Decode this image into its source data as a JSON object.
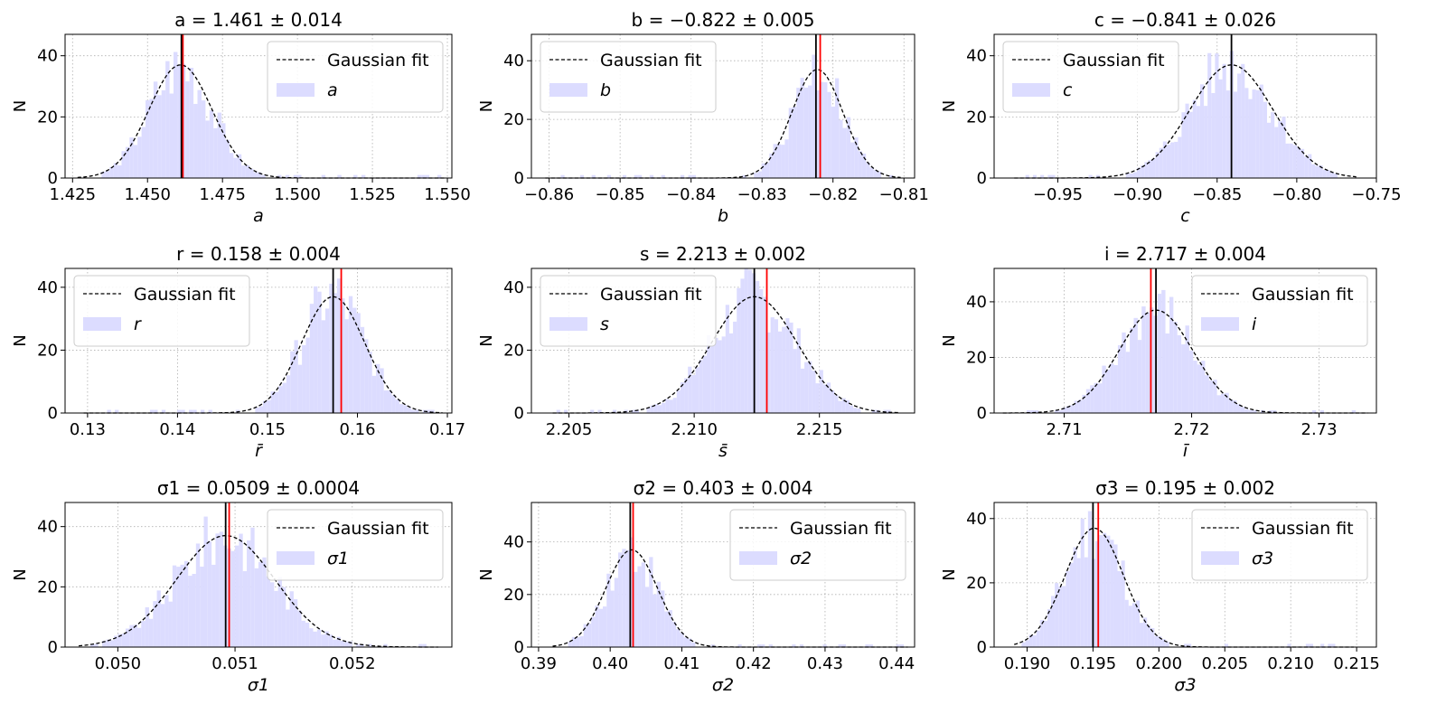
{
  "chart_data": [
    {
      "type": "histogram",
      "title": "a = 1.461 ± 0.014",
      "xlabel": "a",
      "ylabel": "N",
      "legend_fit": "Gaussian fit",
      "legend_symbol": "a",
      "legend_position": "top-right",
      "xlim": [
        1.4225,
        1.5515
      ],
      "ylim": [
        0,
        47
      ],
      "xticks": [
        1.425,
        1.45,
        1.475,
        1.5,
        1.525,
        1.55
      ],
      "xtick_labels": [
        "1.425",
        "1.450",
        "1.475",
        "1.500",
        "1.525",
        "1.550"
      ],
      "yticks": [
        0,
        20,
        40
      ],
      "mean": 1.461,
      "std": 0.0105,
      "peak": 37,
      "black_line": 1.4613,
      "red_line": 1.4618,
      "bins_range": [
        1.428,
        1.548
      ],
      "grid": true
    },
    {
      "type": "histogram",
      "title": "b = −0.822 ± 0.005",
      "xlabel": "b",
      "ylabel": "N",
      "legend_fit": "Gaussian fit",
      "legend_symbol": "b",
      "legend_position": "top-left",
      "xlim": [
        -0.8625,
        -0.8085
      ],
      "ylim": [
        0,
        49
      ],
      "xticks": [
        -0.86,
        -0.85,
        -0.84,
        -0.83,
        -0.82,
        -0.81
      ],
      "xtick_labels": [
        "−0.86",
        "−0.85",
        "−0.84",
        "−0.83",
        "−0.82",
        "−0.81"
      ],
      "yticks": [
        0,
        20,
        40
      ],
      "mean": -0.8222,
      "std": 0.0036,
      "peak": 37,
      "black_line": -0.8224,
      "red_line": -0.8218,
      "bins_range": [
        -0.86,
        -0.811
      ],
      "grid": true
    },
    {
      "type": "histogram",
      "title": "c = −0.841 ± 0.026",
      "xlabel": "c",
      "ylabel": "N",
      "legend_fit": "Gaussian fit",
      "legend_symbol": "c",
      "legend_position": "top-left",
      "xlim": [
        -0.99,
        -0.75
      ],
      "ylim": [
        0,
        47
      ],
      "xticks": [
        -0.95,
        -0.9,
        -0.85,
        -0.8,
        -0.75
      ],
      "xtick_labels": [
        "−0.95",
        "−0.90",
        "−0.85",
        "−0.80",
        "−0.75"
      ],
      "yticks": [
        0,
        20,
        40
      ],
      "mean": -0.841,
      "std": 0.026,
      "peak": 37,
      "black_line": -0.841,
      "red_line": null,
      "bins_range": [
        -0.975,
        -0.765
      ],
      "grid": true
    },
    {
      "type": "histogram",
      "title": "r = 0.158 ± 0.004",
      "xlabel": "r̄",
      "ylabel": "N",
      "legend_fit": "Gaussian fit",
      "legend_symbol": "r",
      "legend_position": "top-left",
      "xlim": [
        0.1275,
        0.1705
      ],
      "ylim": [
        0,
        46
      ],
      "xticks": [
        0.13,
        0.14,
        0.15,
        0.16,
        0.17
      ],
      "xtick_labels": [
        "0.13",
        "0.14",
        "0.15",
        "0.16",
        "0.17"
      ],
      "yticks": [
        0,
        20,
        40
      ],
      "mean": 0.1573,
      "std": 0.0035,
      "peak": 37,
      "black_line": 0.1573,
      "red_line": 0.1582,
      "bins_range": [
        0.13,
        0.169
      ],
      "grid": true
    },
    {
      "type": "histogram",
      "title": "s = 2.213 ± 0.002",
      "xlabel": "s̄",
      "ylabel": "N",
      "legend_fit": "Gaussian fit",
      "legend_symbol": "s",
      "legend_position": "top-left",
      "xlim": [
        2.2035,
        2.2188
      ],
      "ylim": [
        0,
        46
      ],
      "xticks": [
        2.205,
        2.21,
        2.215
      ],
      "xtick_labels": [
        "2.205",
        "2.210",
        "2.215"
      ],
      "yticks": [
        0,
        20,
        40
      ],
      "mean": 2.2124,
      "std": 0.0017,
      "peak": 37,
      "black_line": 2.2124,
      "red_line": 2.2129,
      "bins_range": [
        2.2045,
        2.218
      ],
      "grid": true
    },
    {
      "type": "histogram",
      "title": "i = 2.717 ± 0.004",
      "xlabel": "ī",
      "ylabel": "N",
      "legend_fit": "Gaussian fit",
      "legend_symbol": "i",
      "legend_position": "top-right",
      "xlim": [
        2.7045,
        2.7345
      ],
      "ylim": [
        0,
        52
      ],
      "xticks": [
        2.71,
        2.72,
        2.73
      ],
      "xtick_labels": [
        "2.71",
        "2.72",
        "2.73"
      ],
      "yticks": [
        0,
        20,
        40
      ],
      "mean": 2.7172,
      "std": 0.0029,
      "peak": 37,
      "black_line": 2.7172,
      "red_line": 2.7168,
      "bins_range": [
        2.7055,
        2.7335
      ],
      "grid": true
    },
    {
      "type": "histogram",
      "title": "σ1 = 0.0509 ± 0.0004",
      "xlabel": "σ1",
      "ylabel": "N",
      "legend_fit": "Gaussian fit",
      "legend_symbol": "σ1",
      "legend_position": "top-right",
      "xlim": [
        0.04955,
        0.05285
      ],
      "ylim": [
        0,
        48
      ],
      "xticks": [
        0.05,
        0.051,
        0.052
      ],
      "xtick_labels": [
        "0.050",
        "0.051",
        "0.052"
      ],
      "yticks": [
        0,
        20,
        40
      ],
      "mean": 0.05092,
      "std": 0.00042,
      "peak": 37,
      "black_line": 0.05092,
      "red_line": 0.05095,
      "bins_range": [
        0.0497,
        0.0527
      ],
      "grid": true
    },
    {
      "type": "histogram",
      "title": "σ2 = 0.403 ± 0.004",
      "xlabel": "σ2",
      "ylabel": "N",
      "legend_fit": "Gaussian fit",
      "legend_symbol": "σ2",
      "legend_position": "top-right",
      "xlim": [
        0.389,
        0.4425
      ],
      "ylim": [
        0,
        55
      ],
      "xticks": [
        0.39,
        0.4,
        0.41,
        0.42,
        0.43,
        0.44
      ],
      "xtick_labels": [
        "0.39",
        "0.40",
        "0.41",
        "0.42",
        "0.43",
        "0.44"
      ],
      "yticks": [
        0,
        20,
        40
      ],
      "mean": 0.403,
      "std": 0.0036,
      "peak": 37,
      "black_line": 0.4028,
      "red_line": 0.4032,
      "bins_range": [
        0.3925,
        0.441
      ],
      "grid": true
    },
    {
      "type": "histogram",
      "title": "σ3 = 0.195 ± 0.002",
      "xlabel": "σ3",
      "ylabel": "N",
      "legend_fit": "Gaussian fit",
      "legend_symbol": "σ3",
      "legend_position": "top-right",
      "xlim": [
        0.1875,
        0.2165
      ],
      "ylim": [
        0,
        45
      ],
      "xticks": [
        0.19,
        0.195,
        0.2,
        0.205,
        0.21,
        0.215
      ],
      "xtick_labels": [
        "0.190",
        "0.195",
        "0.200",
        "0.205",
        "0.210",
        "0.215"
      ],
      "yticks": [
        0,
        20,
        40
      ],
      "mean": 0.1951,
      "std": 0.0022,
      "peak": 37,
      "black_line": 0.195,
      "red_line": 0.1954,
      "bins_range": [
        0.1893,
        0.2145
      ],
      "grid": true
    }
  ]
}
